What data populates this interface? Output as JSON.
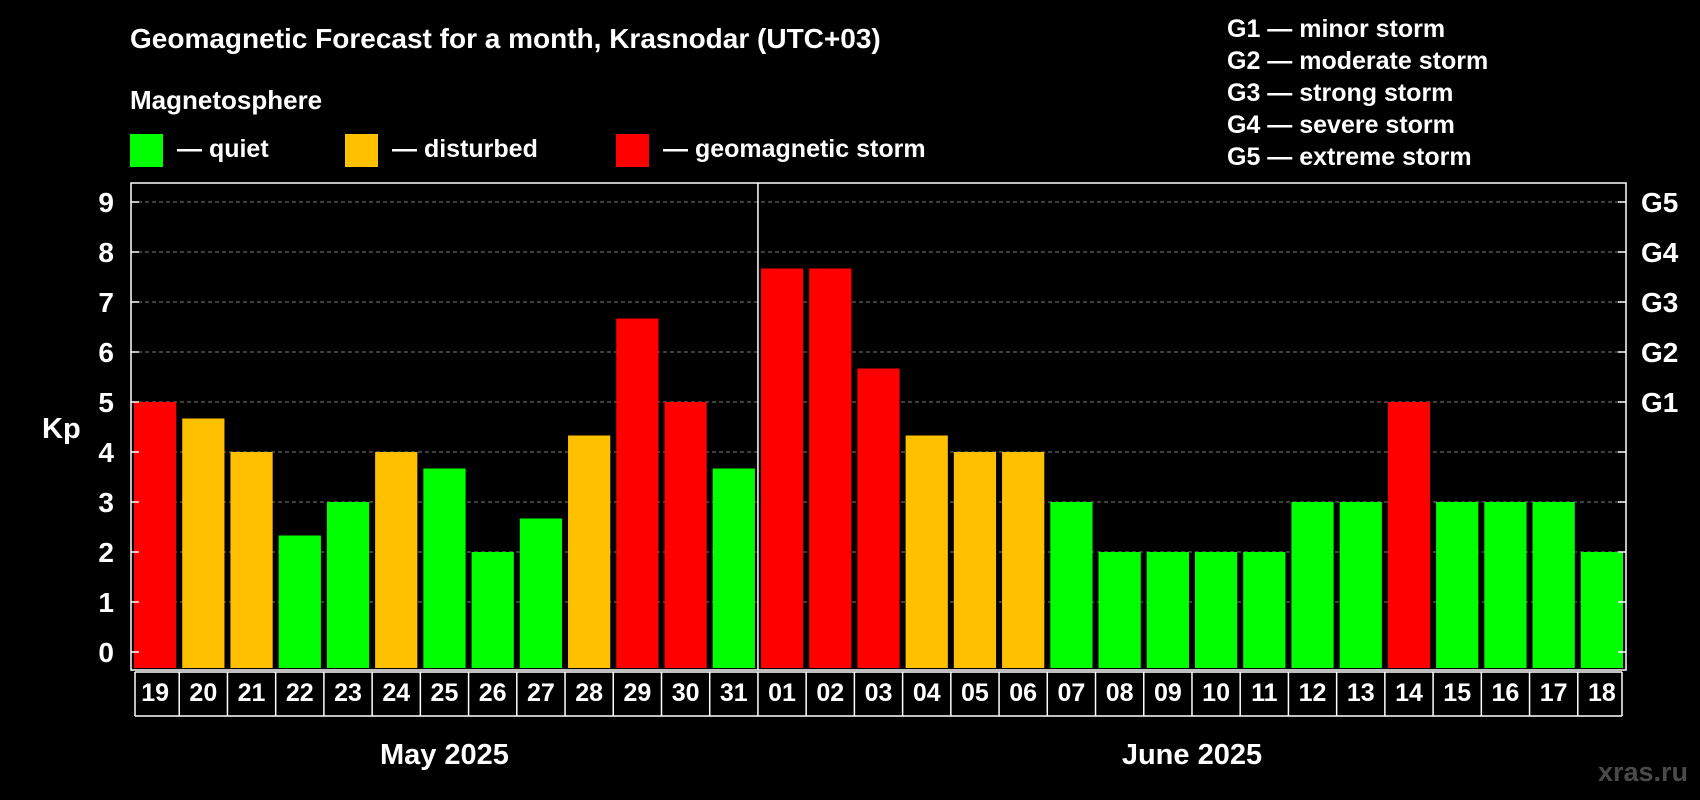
{
  "chart_data": {
    "type": "bar",
    "title": "Geomagnetic Forecast for a month, Krasnodar (UTC+03)",
    "legend_heading": "Magnetosphere",
    "legend": [
      {
        "key": "quiet",
        "label": "— quiet",
        "color": "#00ff00"
      },
      {
        "key": "disturbed",
        "label": "— disturbed",
        "color": "#ffc000"
      },
      {
        "key": "storm",
        "label": "— geomagnetic storm",
        "color": "#ff0000"
      }
    ],
    "storm_levels": [
      "G1 — minor storm",
      "G2 — moderate storm",
      "G3 — strong storm",
      "G4 — severe storm",
      "G5 — extreme storm"
    ],
    "ylabel": "Kp",
    "ylim": [
      0,
      9
    ],
    "yticks": [
      "0",
      "1",
      "2",
      "3",
      "4",
      "5",
      "6",
      "7",
      "8",
      "9"
    ],
    "right_ticks": [
      {
        "value": 5,
        "label": "G1"
      },
      {
        "value": 6,
        "label": "G2"
      },
      {
        "value": 7,
        "label": "G3"
      },
      {
        "value": 8,
        "label": "G4"
      },
      {
        "value": 9,
        "label": "G5"
      }
    ],
    "grid": true,
    "categories": [
      "19",
      "20",
      "21",
      "22",
      "23",
      "24",
      "25",
      "26",
      "27",
      "28",
      "29",
      "30",
      "31",
      "01",
      "02",
      "03",
      "04",
      "05",
      "06",
      "07",
      "08",
      "09",
      "10",
      "11",
      "12",
      "13",
      "14",
      "15",
      "16",
      "17",
      "18"
    ],
    "values": [
      5,
      4.67,
      4,
      2.33,
      3,
      4,
      3.67,
      2,
      2.67,
      4.33,
      6.67,
      5,
      3.67,
      7.67,
      7.67,
      5.67,
      4.33,
      4,
      4,
      3,
      2,
      2,
      2,
      2,
      3,
      3,
      5,
      3,
      3,
      3,
      2
    ],
    "levels": [
      "storm",
      "disturbed",
      "disturbed",
      "quiet",
      "quiet",
      "disturbed",
      "quiet",
      "quiet",
      "quiet",
      "disturbed",
      "storm",
      "storm",
      "quiet",
      "storm",
      "storm",
      "storm",
      "disturbed",
      "disturbed",
      "disturbed",
      "quiet",
      "quiet",
      "quiet",
      "quiet",
      "quiet",
      "quiet",
      "quiet",
      "storm",
      "quiet",
      "quiet",
      "quiet",
      "quiet"
    ],
    "months": [
      {
        "label": "May 2025",
        "count": 13
      },
      {
        "label": "June 2025",
        "count": 18
      }
    ]
  },
  "watermark": "xras.ru"
}
